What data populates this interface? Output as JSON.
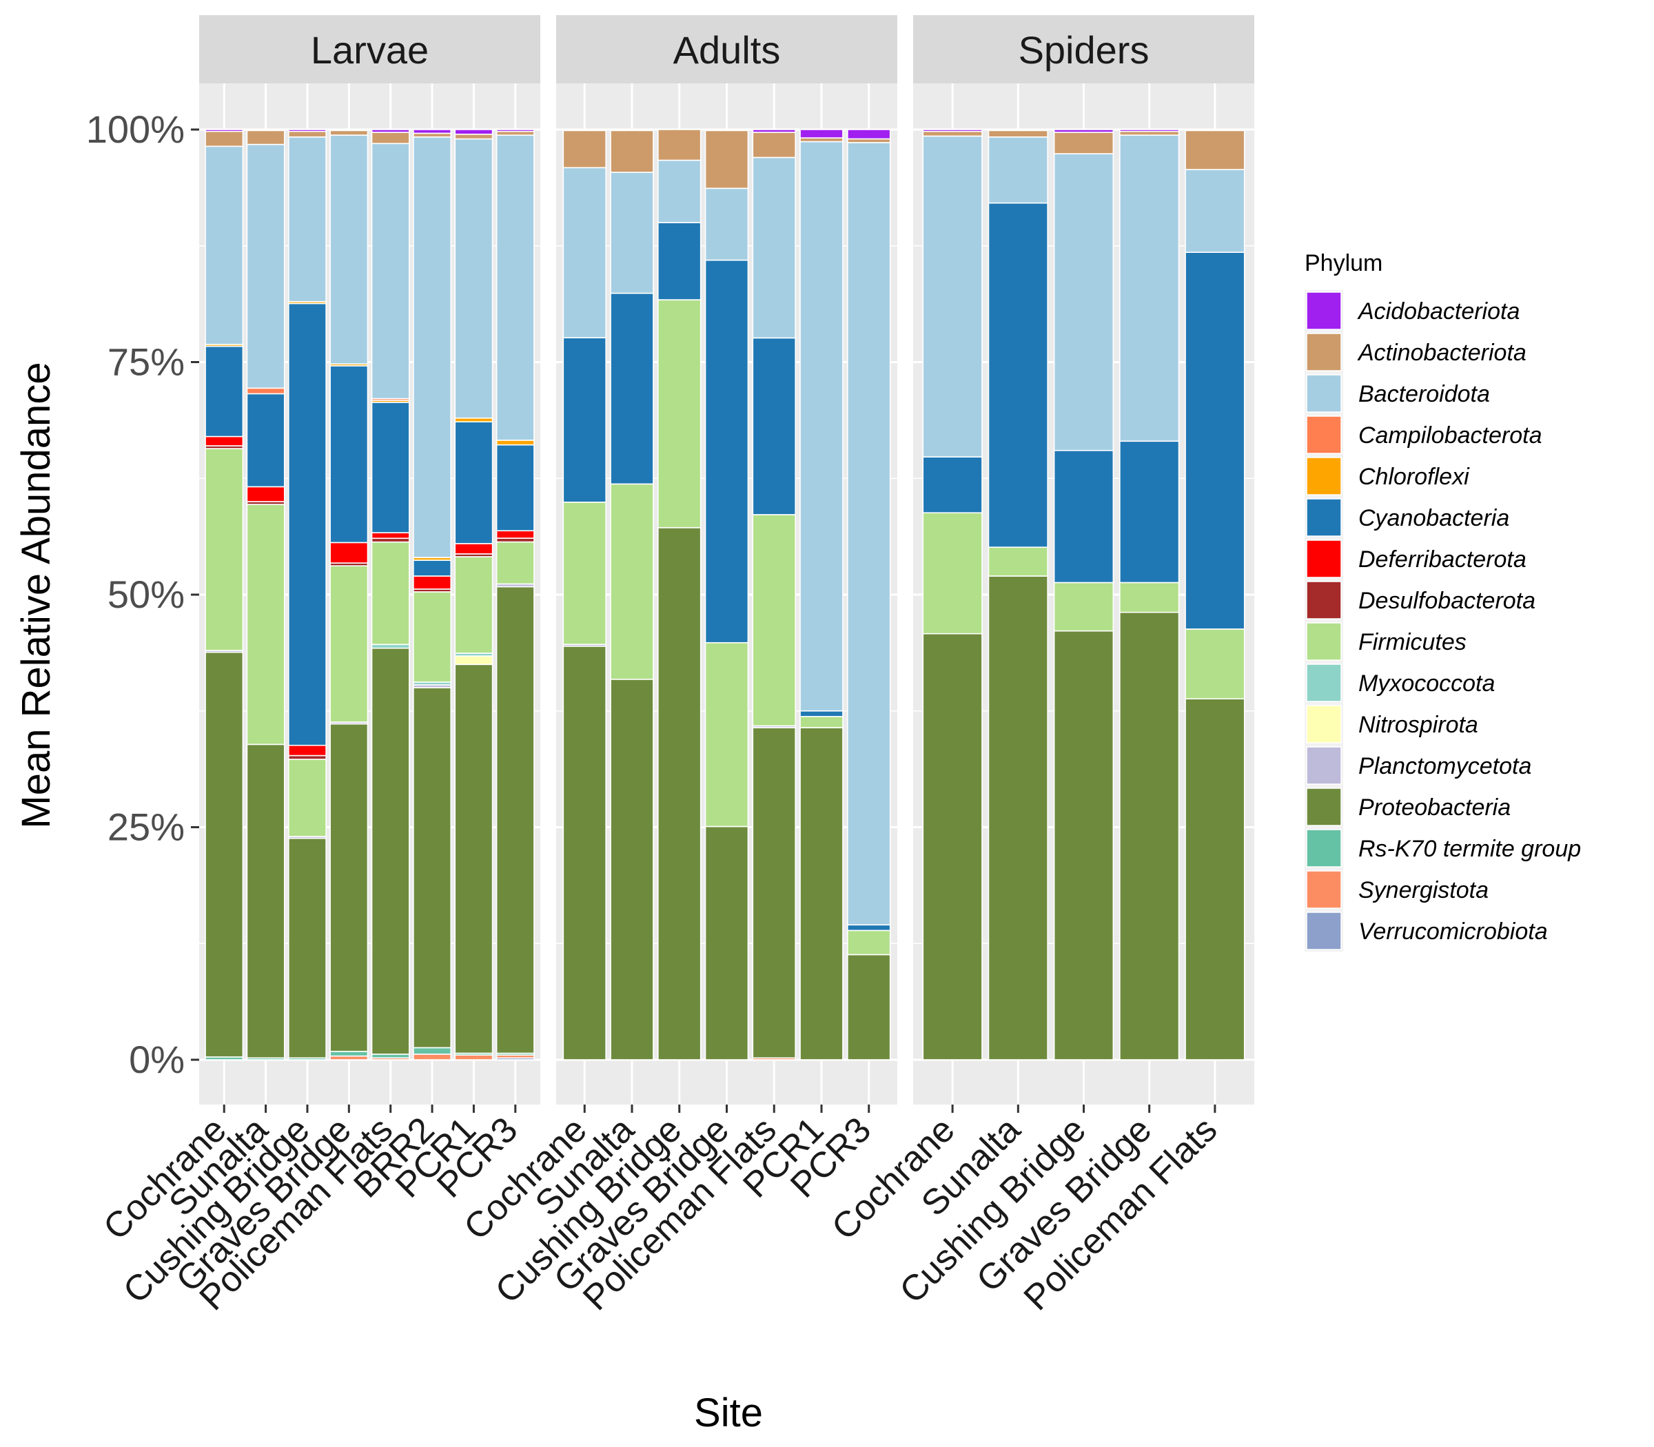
{
  "chart_data": {
    "type": "bar",
    "stacked": true,
    "normalized": true,
    "xlabel": "Site",
    "ylabel": "Mean Relative Abundance",
    "ylim": [
      0,
      1
    ],
    "yticks": [
      0,
      0.25,
      0.5,
      0.75,
      1.0
    ],
    "ytick_labels": [
      "0%",
      "25%",
      "50%",
      "75%",
      "100%"
    ],
    "grid": true,
    "legend": {
      "title": "Phylum",
      "position": "right",
      "entries": [
        "Acidobacteriota",
        "Actinobacteriota",
        "Bacteroidota",
        "Campilobacterota",
        "Chloroflexi",
        "Cyanobacteria",
        "Deferribacterota",
        "Desulfobacterota",
        "Firmicutes",
        "Myxococcota",
        "Nitrospirota",
        "Planctomycetota",
        "Proteobacteria",
        "Rs-K70 termite group",
        "Synergistota",
        "Verrucomicrobiota"
      ]
    },
    "colors": {
      "Acidobacteriota": "#A020F0",
      "Actinobacteriota": "#CD9B6A",
      "Bacteroidota": "#A6CEE3",
      "Campilobacterota": "#FF7F50",
      "Chloroflexi": "#FFA500",
      "Cyanobacteria": "#1F78B4",
      "Deferribacterota": "#FF0000",
      "Desulfobacterota": "#A52A2A",
      "Firmicutes": "#B2DF8A",
      "Myxococcota": "#8DD3C7",
      "Nitrospirota": "#FFFFB3",
      "Planctomycetota": "#BEBADA",
      "Proteobacteria": "#6E8B3D",
      "Rs-K70 termite group": "#66C2A5",
      "Synergistota": "#FC8D62",
      "Verrucomicrobiota": "#8DA0CB"
    },
    "stack_order_bottom_to_top": [
      "Verrucomicrobiota",
      "Synergistota",
      "Rs-K70 termite group",
      "Proteobacteria",
      "Planctomycetota",
      "Nitrospirota",
      "Myxococcota",
      "Firmicutes",
      "Desulfobacterota",
      "Deferribacterota",
      "Cyanobacteria",
      "Chloroflexi",
      "Campilobacterota",
      "Bacteroidota",
      "Actinobacteriota",
      "Acidobacteriota"
    ],
    "panels": [
      {
        "name": "Larvae",
        "categories": [
          "Cochrane",
          "Sunalta",
          "Cushing Bridge",
          "Graves Bridge",
          "Policeman Flats",
          "BRR2",
          "PCR1",
          "PCR3"
        ],
        "bars": [
          {
            "Rs-K70 termite group": 0.003,
            "Proteobacteria": 0.435,
            "Planctomycetota": 0.002,
            "Firmicutes": 0.217,
            "Desulfobacterota": 0.003,
            "Deferribacterota": 0.01,
            "Cyanobacteria": 0.097,
            "Chloroflexi": 0.002,
            "Bacteroidota": 0.213,
            "Actinobacteriota": 0.016,
            "Acidobacteriota": 0.002
          },
          {
            "Rs-K70 termite group": 0.002,
            "Proteobacteria": 0.337,
            "Firmicutes": 0.258,
            "Desulfobacterota": 0.003,
            "Deferribacterota": 0.016,
            "Cyanobacteria": 0.1,
            "Campilobacterota": 0.006,
            "Bacteroidota": 0.262,
            "Actinobacteriota": 0.015,
            "Acidobacteriota": 0.001
          },
          {
            "Rs-K70 termite group": 0.002,
            "Proteobacteria": 0.236,
            "Planctomycetota": 0.002,
            "Firmicutes": 0.083,
            "Desulfobacterota": 0.004,
            "Deferribacterota": 0.011,
            "Cyanobacteria": 0.475,
            "Chloroflexi": 0.002,
            "Bacteroidota": 0.177,
            "Actinobacteriota": 0.006,
            "Acidobacteriota": 0.002
          },
          {
            "Synergistota": 0.004,
            "Rs-K70 termite group": 0.005,
            "Proteobacteria": 0.352,
            "Planctomycetota": 0.002,
            "Firmicutes": 0.168,
            "Desulfobacterota": 0.003,
            "Deferribacterota": 0.022,
            "Cyanobacteria": 0.19,
            "Chloroflexi": 0.002,
            "Bacteroidota": 0.246,
            "Actinobacteriota": 0.005,
            "Acidobacteriota": 0.001
          },
          {
            "Synergistota": 0.002,
            "Rs-K70 termite group": 0.004,
            "Proteobacteria": 0.436,
            "Myxococcota": 0.004,
            "Firmicutes": 0.11,
            "Desulfobacterota": 0.004,
            "Deferribacterota": 0.006,
            "Cyanobacteria": 0.14,
            "Chloroflexi": 0.002,
            "Campilobacterota": 0.002,
            "Bacteroidota": 0.274,
            "Actinobacteriota": 0.012,
            "Acidobacteriota": 0.003
          },
          {
            "Synergistota": 0.006,
            "Rs-K70 termite group": 0.007,
            "Proteobacteria": 0.387,
            "Planctomycetota": 0.003,
            "Myxococcota": 0.003,
            "Firmicutes": 0.097,
            "Desulfobacterota": 0.003,
            "Deferribacterota": 0.014,
            "Cyanobacteria": 0.017,
            "Chloroflexi": 0.003,
            "Bacteroidota": 0.452,
            "Actinobacteriota": 0.004,
            "Acidobacteriota": 0.004
          },
          {
            "Synergistota": 0.005,
            "Rs-K70 termite group": 0.002,
            "Proteobacteria": 0.415,
            "Nitrospirota": 0.009,
            "Myxococcota": 0.003,
            "Firmicutes": 0.103,
            "Desulfobacterota": 0.003,
            "Deferribacterota": 0.011,
            "Cyanobacteria": 0.13,
            "Chloroflexi": 0.004,
            "Bacteroidota": 0.298,
            "Actinobacteriota": 0.005,
            "Acidobacteriota": 0.005
          },
          {
            "Synergistota": 0.003,
            "Rs-K70 termite group": 0.002,
            "Proteobacteria": 0.5,
            "Planctomycetota": 0.003,
            "Verrucomicrobiota": 0.002,
            "Firmicutes": 0.045,
            "Desulfobacterota": 0.004,
            "Deferribacterota": 0.008,
            "Cyanobacteria": 0.092,
            "Chloroflexi": 0.005,
            "Bacteroidota": 0.327,
            "Actinobacteriota": 0.004,
            "Acidobacteriota": 0.002
          }
        ]
      },
      {
        "name": "Adults",
        "categories": [
          "Cochrane",
          "Sunalta",
          "Cushing Bridge",
          "Graves Bridge",
          "Policeman Flats",
          "PCR1",
          "PCR3"
        ],
        "bars": [
          {
            "Proteobacteria": 0.445,
            "Planctomycetota": 0.002,
            "Firmicutes": 0.153,
            "Cyanobacteria": 0.177,
            "Bacteroidota": 0.183,
            "Actinobacteriota": 0.04,
            "Acidobacteriota": 0.001
          },
          {
            "Proteobacteria": 0.409,
            "Firmicutes": 0.21,
            "Cyanobacteria": 0.205,
            "Bacteroidota": 0.13,
            "Actinobacteriota": 0.045,
            "Acidobacteriota": 0.001
          },
          {
            "Proteobacteria": 0.572,
            "Firmicutes": 0.245,
            "Cyanobacteria": 0.083,
            "Bacteroidota": 0.067,
            "Actinobacteriota": 0.033
          },
          {
            "Proteobacteria": 0.25,
            "Firmicutes": 0.197,
            "Cyanobacteria": 0.41,
            "Bacteroidota": 0.077,
            "Actinobacteriota": 0.062,
            "Acidobacteriota": 0.001
          },
          {
            "Synergistota": 0.002,
            "Proteobacteria": 0.355,
            "Planctomycetota": 0.002,
            "Firmicutes": 0.227,
            "Cyanobacteria": 0.19,
            "Bacteroidota": 0.194,
            "Actinobacteriota": 0.027,
            "Acidobacteriota": 0.003
          },
          {
            "Proteobacteria": 0.357,
            "Firmicutes": 0.012,
            "Cyanobacteria": 0.006,
            "Bacteroidota": 0.612,
            "Actinobacteriota": 0.004,
            "Acidobacteriota": 0.009
          },
          {
            "Proteobacteria": 0.113,
            "Firmicutes": 0.026,
            "Cyanobacteria": 0.006,
            "Bacteroidota": 0.841,
            "Actinobacteriota": 0.004,
            "Acidobacteriota": 0.01
          }
        ]
      },
      {
        "name": "Spiders",
        "categories": [
          "Cochrane",
          "Sunalta",
          "Cushing Bridge",
          "Graves Bridge",
          "Policeman Flats"
        ],
        "bars": [
          {
            "Proteobacteria": 0.458,
            "Firmicutes": 0.13,
            "Cyanobacteria": 0.06,
            "Bacteroidota": 0.345,
            "Actinobacteriota": 0.005,
            "Acidobacteriota": 0.002
          },
          {
            "Proteobacteria": 0.52,
            "Firmicutes": 0.031,
            "Cyanobacteria": 0.37,
            "Bacteroidota": 0.071,
            "Actinobacteriota": 0.007,
            "Acidobacteriota": 0.001
          },
          {
            "Proteobacteria": 0.461,
            "Firmicutes": 0.052,
            "Cyanobacteria": 0.142,
            "Bacteroidota": 0.319,
            "Actinobacteriota": 0.023,
            "Acidobacteriota": 0.003
          },
          {
            "Proteobacteria": 0.481,
            "Firmicutes": 0.032,
            "Cyanobacteria": 0.152,
            "Bacteroidota": 0.329,
            "Actinobacteriota": 0.004,
            "Acidobacteriota": 0.002
          },
          {
            "Proteobacteria": 0.388,
            "Firmicutes": 0.075,
            "Cyanobacteria": 0.405,
            "Bacteroidota": 0.089,
            "Actinobacteriota": 0.042,
            "Acidobacteriota": 0.001
          }
        ]
      }
    ]
  }
}
